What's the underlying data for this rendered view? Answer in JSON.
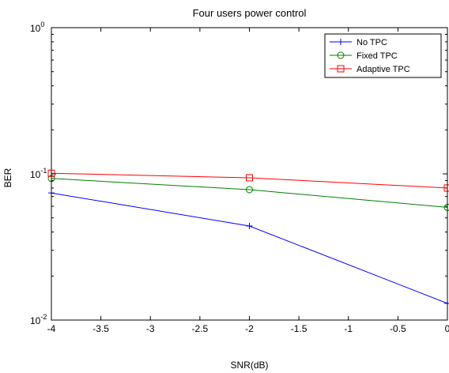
{
  "chart_data": {
    "type": "line",
    "title": "Four users power control",
    "xlabel": "SNR(dB)",
    "ylabel": "BER",
    "x": [
      -4,
      -2,
      0
    ],
    "xlim": [
      -4,
      0
    ],
    "ylim": [
      0.01,
      1
    ],
    "yscale": "log",
    "grid": false,
    "legend_position": "top-right",
    "xticks": [
      -4,
      -3.5,
      -3,
      -2.5,
      -2,
      -1.5,
      -1,
      -0.5,
      0
    ],
    "xtick_labels": [
      "-4",
      "-3.5",
      "-3",
      "-2.5",
      "-2",
      "-1.5",
      "-1",
      "-0.5",
      "0"
    ],
    "yticks": [
      {
        "base": "10",
        "exp": "0",
        "value": 1
      },
      {
        "base": "10",
        "exp": "-1",
        "value": 0.1
      },
      {
        "base": "10",
        "exp": "-2",
        "value": 0.01
      }
    ],
    "series": [
      {
        "name": "No TPC",
        "values": [
          0.074,
          0.044,
          0.013
        ],
        "color": "#0000ff",
        "marker": "plus"
      },
      {
        "name": "Fixed TPC",
        "values": [
          0.093,
          0.078,
          0.059
        ],
        "color": "#008000",
        "marker": "circle"
      },
      {
        "name": "Adaptive TPC",
        "values": [
          0.101,
          0.094,
          0.08
        ],
        "color": "#ff0000",
        "marker": "square"
      }
    ]
  }
}
